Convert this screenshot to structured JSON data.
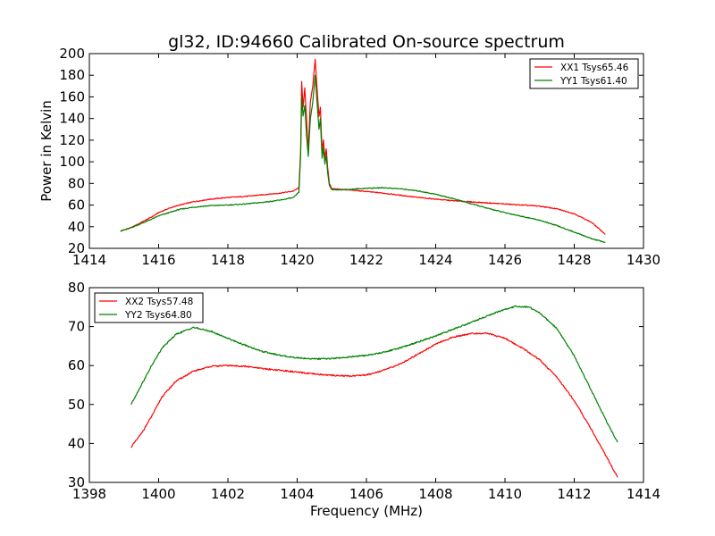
{
  "figure": {
    "title": "gl32, ID:94660 Calibrated On-source spectrum",
    "ylabel": "Power in Kelvin",
    "xlabel": "Frequency (MHz)"
  },
  "chart_data": [
    {
      "type": "line",
      "title": "gl32, ID:94660 Calibrated On-source spectrum",
      "xlabel": "",
      "ylabel": "Power in Kelvin",
      "xlim": [
        1414,
        1430
      ],
      "ylim": [
        20,
        200
      ],
      "xticks": [
        1414,
        1416,
        1418,
        1420,
        1422,
        1424,
        1426,
        1428,
        1430
      ],
      "yticks": [
        20,
        40,
        60,
        80,
        100,
        120,
        140,
        160,
        180,
        200
      ],
      "legend_position": "top-right",
      "grid": false,
      "series": [
        {
          "name": "XX1 Tsys65.46",
          "color": "#ff0000",
          "points": [
            [
              1414.9,
              36
            ],
            [
              1415.2,
              39
            ],
            [
              1415.5,
              44
            ],
            [
              1415.8,
              49
            ],
            [
              1416.0,
              53
            ],
            [
              1416.3,
              57
            ],
            [
              1416.6,
              60
            ],
            [
              1417.0,
              63
            ],
            [
              1417.5,
              65.5
            ],
            [
              1418.0,
              67
            ],
            [
              1418.5,
              68
            ],
            [
              1419.0,
              69.5
            ],
            [
              1419.5,
              71
            ],
            [
              1419.9,
              73
            ],
            [
              1420.05,
              76
            ],
            [
              1420.1,
              110
            ],
            [
              1420.13,
              174
            ],
            [
              1420.17,
              150
            ],
            [
              1420.22,
              168
            ],
            [
              1420.27,
              140
            ],
            [
              1420.32,
              110
            ],
            [
              1420.38,
              155
            ],
            [
              1420.45,
              170
            ],
            [
              1420.52,
              195
            ],
            [
              1420.58,
              165
            ],
            [
              1420.63,
              142
            ],
            [
              1420.67,
              150
            ],
            [
              1420.72,
              110
            ],
            [
              1420.76,
              120
            ],
            [
              1420.8,
              103
            ],
            [
              1420.84,
              112
            ],
            [
              1420.88,
              95
            ],
            [
              1420.93,
              80
            ],
            [
              1421.0,
              75
            ],
            [
              1421.5,
              74
            ],
            [
              1422.0,
              72.5
            ],
            [
              1422.5,
              71
            ],
            [
              1423.0,
              69
            ],
            [
              1423.5,
              67
            ],
            [
              1424.0,
              65.5
            ],
            [
              1424.5,
              64
            ],
            [
              1425.0,
              63
            ],
            [
              1425.5,
              62
            ],
            [
              1426.0,
              61
            ],
            [
              1426.5,
              60
            ],
            [
              1427.0,
              59
            ],
            [
              1427.5,
              56.5
            ],
            [
              1428.0,
              52
            ],
            [
              1428.5,
              44
            ],
            [
              1428.9,
              33
            ]
          ]
        },
        {
          "name": "YY1 Tsys61.40",
          "color": "#008000",
          "points": [
            [
              1414.9,
              36
            ],
            [
              1415.2,
              39
            ],
            [
              1415.5,
              43
            ],
            [
              1415.8,
              47
            ],
            [
              1416.0,
              50
            ],
            [
              1416.3,
              53
            ],
            [
              1416.6,
              56
            ],
            [
              1417.0,
              58
            ],
            [
              1417.5,
              59.5
            ],
            [
              1418.0,
              60
            ],
            [
              1418.5,
              61
            ],
            [
              1419.0,
              62.5
            ],
            [
              1419.5,
              64.5
            ],
            [
              1419.9,
              67
            ],
            [
              1420.05,
              72
            ],
            [
              1420.1,
              105
            ],
            [
              1420.13,
              160
            ],
            [
              1420.17,
              142
            ],
            [
              1420.22,
              152
            ],
            [
              1420.27,
              125
            ],
            [
              1420.32,
              105
            ],
            [
              1420.38,
              140
            ],
            [
              1420.45,
              155
            ],
            [
              1420.52,
              180
            ],
            [
              1420.58,
              152
            ],
            [
              1420.63,
              130
            ],
            [
              1420.67,
              140
            ],
            [
              1420.72,
              103
            ],
            [
              1420.76,
              113
            ],
            [
              1420.8,
              98
            ],
            [
              1420.84,
              106
            ],
            [
              1420.88,
              90
            ],
            [
              1420.93,
              78
            ],
            [
              1421.0,
              74
            ],
            [
              1421.5,
              74.5
            ],
            [
              1422.0,
              75.5
            ],
            [
              1422.5,
              76
            ],
            [
              1423.0,
              75
            ],
            [
              1423.5,
              73
            ],
            [
              1424.0,
              70
            ],
            [
              1424.5,
              66
            ],
            [
              1425.0,
              61.5
            ],
            [
              1425.5,
              57
            ],
            [
              1426.0,
              53
            ],
            [
              1426.5,
              49.5
            ],
            [
              1427.0,
              46
            ],
            [
              1427.5,
              41
            ],
            [
              1428.0,
              35
            ],
            [
              1428.5,
              29
            ],
            [
              1428.9,
              25.5
            ]
          ]
        }
      ]
    },
    {
      "type": "line",
      "title": "",
      "xlabel": "Frequency (MHz)",
      "ylabel": "",
      "xlim": [
        1398,
        1414
      ],
      "ylim": [
        30,
        80
      ],
      "xticks": [
        1398,
        1400,
        1402,
        1404,
        1406,
        1408,
        1410,
        1412,
        1414
      ],
      "yticks": [
        30,
        40,
        50,
        60,
        70,
        80
      ],
      "legend_position": "top-left",
      "grid": false,
      "series": [
        {
          "name": "XX2 Tsys57.48",
          "color": "#ff0000",
          "points": [
            [
              1399.2,
              39
            ],
            [
              1399.5,
              42.5
            ],
            [
              1399.8,
              47
            ],
            [
              1400.1,
              52
            ],
            [
              1400.5,
              56
            ],
            [
              1401.0,
              58.5
            ],
            [
              1401.5,
              59.8
            ],
            [
              1402.0,
              60
            ],
            [
              1402.5,
              59.8
            ],
            [
              1403.0,
              59.2
            ],
            [
              1403.5,
              58.8
            ],
            [
              1404.0,
              58.3
            ],
            [
              1404.5,
              57.8
            ],
            [
              1405.0,
              57.5
            ],
            [
              1405.5,
              57.3
            ],
            [
              1406.0,
              57.6
            ],
            [
              1406.5,
              58.8
            ],
            [
              1407.0,
              60.5
            ],
            [
              1407.5,
              63
            ],
            [
              1408.0,
              65.5
            ],
            [
              1408.5,
              67.3
            ],
            [
              1409.0,
              68.2
            ],
            [
              1409.5,
              68.3
            ],
            [
              1410.0,
              67
            ],
            [
              1410.5,
              64.5
            ],
            [
              1411.0,
              61.5
            ],
            [
              1411.5,
              57
            ],
            [
              1412.0,
              51
            ],
            [
              1412.5,
              43.5
            ],
            [
              1413.0,
              35.5
            ],
            [
              1413.25,
              31.3
            ]
          ]
        },
        {
          "name": "YY2 Tsys64.80",
          "color": "#008000",
          "points": [
            [
              1399.2,
              50
            ],
            [
              1399.5,
              55
            ],
            [
              1399.8,
              60
            ],
            [
              1400.1,
              64.5
            ],
            [
              1400.5,
              68
            ],
            [
              1401.0,
              69.8
            ],
            [
              1401.5,
              68.8
            ],
            [
              1402.0,
              67
            ],
            [
              1402.5,
              65.2
            ],
            [
              1403.0,
              63.6
            ],
            [
              1403.5,
              62.6
            ],
            [
              1404.0,
              62
            ],
            [
              1404.5,
              61.7
            ],
            [
              1405.0,
              61.8
            ],
            [
              1405.5,
              62.2
            ],
            [
              1406.0,
              62.6
            ],
            [
              1406.5,
              63.4
            ],
            [
              1407.0,
              64.6
            ],
            [
              1407.5,
              66.1
            ],
            [
              1408.0,
              67.6
            ],
            [
              1408.5,
              69.3
            ],
            [
              1409.0,
              71
            ],
            [
              1409.5,
              72.8
            ],
            [
              1410.0,
              74.4
            ],
            [
              1410.3,
              75.2
            ],
            [
              1410.7,
              75
            ],
            [
              1411.0,
              73.5
            ],
            [
              1411.5,
              69.5
            ],
            [
              1412.0,
              62.5
            ],
            [
              1412.5,
              53.5
            ],
            [
              1413.0,
              44.5
            ],
            [
              1413.25,
              40.3
            ]
          ]
        }
      ]
    }
  ]
}
